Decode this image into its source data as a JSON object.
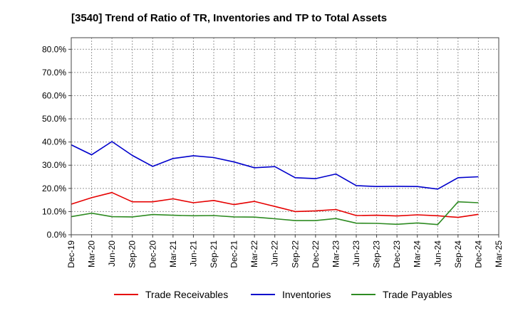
{
  "chart_data": {
    "type": "line",
    "title": "[3540]  Trend of Ratio of TR, Inventories and TP to Total Assets",
    "x": [
      "Dec-19",
      "Mar-20",
      "Jun-20",
      "Sep-20",
      "Dec-20",
      "Mar-21",
      "Jun-21",
      "Sep-21",
      "Dec-21",
      "Mar-22",
      "Jun-22",
      "Sep-22",
      "Dec-22",
      "Mar-23",
      "Jun-23",
      "Sep-23",
      "Dec-23",
      "Mar-24",
      "Jun-24",
      "Sep-24",
      "Dec-24",
      "Mar-25"
    ],
    "ylim": [
      0,
      85
    ],
    "yticks": [
      0,
      10,
      20,
      30,
      40,
      50,
      60,
      70,
      80
    ],
    "ytick_labels": [
      "0.0%",
      "10.0%",
      "20.0%",
      "30.0%",
      "40.0%",
      "50.0%",
      "60.0%",
      "70.0%",
      "80.0%"
    ],
    "grid": true,
    "legend_position": "bottom",
    "series": [
      {
        "name": "Trade Receivables",
        "color": "#e60000",
        "values": [
          13.2,
          16.0,
          18.2,
          14.2,
          14.2,
          15.5,
          13.8,
          14.8,
          13.0,
          14.4,
          12.2,
          10.0,
          10.3,
          10.9,
          8.3,
          8.4,
          8.1,
          8.6,
          8.2,
          7.5,
          8.8,
          null
        ]
      },
      {
        "name": "Inventories",
        "color": "#0000cc",
        "values": [
          38.8,
          34.5,
          40.2,
          34.2,
          29.5,
          32.9,
          34.1,
          33.3,
          31.4,
          28.9,
          29.4,
          24.6,
          24.2,
          26.2,
          21.2,
          20.8,
          20.9,
          20.8,
          19.7,
          24.6,
          25.0,
          null
        ]
      },
      {
        "name": "Trade Payables",
        "color": "#2e8b22",
        "values": [
          7.8,
          9.3,
          7.8,
          7.7,
          8.7,
          8.4,
          8.2,
          8.3,
          7.7,
          7.6,
          6.9,
          6.1,
          6.1,
          7.0,
          5.0,
          4.9,
          4.5,
          5.1,
          4.4,
          14.2,
          13.8,
          null
        ]
      }
    ]
  }
}
